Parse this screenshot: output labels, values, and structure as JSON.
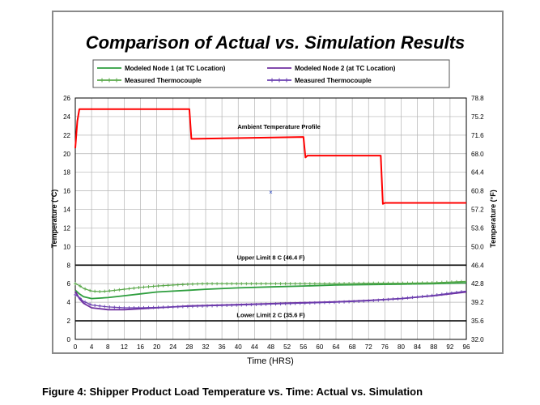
{
  "caption": "Figure 4:  Shipper Product Load Temperature vs. Time: Actual vs. Simulation",
  "chart_data": {
    "type": "line",
    "title": "Comparison of Actual vs. Simulation Results",
    "xlabel": "Time (HRS)",
    "ylabel": "Temperature (°C)",
    "ylabel_right": "Temperature (°F)",
    "xlim": [
      0,
      96
    ],
    "ylim": [
      0,
      26
    ],
    "x_ticks": [
      "0",
      "4",
      "8",
      "12",
      "16",
      "20",
      "24",
      "28",
      "32",
      "36",
      "40",
      "44",
      "48",
      "52",
      "56",
      "60",
      "64",
      "68",
      "72",
      "76",
      "80",
      "84",
      "88",
      "92",
      "96"
    ],
    "y_ticks": [
      "0",
      "2",
      "4",
      "6",
      "8",
      "10",
      "12",
      "14",
      "16",
      "18",
      "20",
      "22",
      "24",
      "26"
    ],
    "y_ticks_right": [
      "32.0",
      "35.6",
      "39.2",
      "42.8",
      "46.4",
      "50.0",
      "53.6",
      "57.2",
      "60.8",
      "64.4",
      "68.0",
      "71.6",
      "75.2",
      "78.8"
    ],
    "legend": [
      {
        "label": "Modeled Node 1 (at TC Location)",
        "color": "#2e9e3e",
        "marker": "none"
      },
      {
        "label": "Modeled Node 2 (at TC Location)",
        "color": "#7030a0",
        "marker": "none"
      },
      {
        "label": "Measured Thermocouple",
        "color": "#5aa84a",
        "marker": "plus"
      },
      {
        "label": "Measured Thermocouple",
        "color": "#6a3fb0",
        "marker": "plus"
      }
    ],
    "annotations": [
      {
        "text": "Ambient Temperature Profile",
        "x": 50,
        "y": 22.7
      },
      {
        "text": "Upper Limit 8  C (46.4  F)",
        "x": 48,
        "y": 8.6
      },
      {
        "text": "Lower Limit 2  C (35.6  F)",
        "x": 48,
        "y": 2.4
      }
    ],
    "limit_lines": [
      8,
      2
    ],
    "series": [
      {
        "name": "Ambient Temperature Profile",
        "color": "#ff0000",
        "x": [
          0,
          0.5,
          1,
          28,
          28.5,
          29,
          56,
          56.5,
          57,
          75,
          75.5,
          76,
          96
        ],
        "y": [
          20.6,
          23.5,
          24.8,
          24.8,
          21.6,
          21.6,
          21.8,
          19.6,
          19.8,
          19.8,
          14.6,
          14.7,
          14.7
        ]
      },
      {
        "name": "Modeled Node 1 (at TC Location)",
        "color": "#2e9e3e",
        "x": [
          0,
          1,
          2,
          4,
          8,
          12,
          16,
          20,
          24,
          28,
          32,
          40,
          48,
          56,
          64,
          72,
          80,
          88,
          96
        ],
        "y": [
          5.3,
          4.9,
          4.6,
          4.4,
          4.5,
          4.7,
          4.9,
          5.1,
          5.2,
          5.3,
          5.4,
          5.55,
          5.65,
          5.75,
          5.85,
          5.9,
          5.95,
          6.0,
          6.1
        ]
      },
      {
        "name": "Modeled Node 2 (at TC Location)",
        "color": "#7030a0",
        "x": [
          0,
          1,
          2,
          4,
          8,
          12,
          16,
          20,
          24,
          28,
          32,
          40,
          48,
          56,
          64,
          72,
          80,
          88,
          96
        ],
        "y": [
          5.2,
          4.4,
          3.9,
          3.4,
          3.2,
          3.2,
          3.3,
          3.4,
          3.5,
          3.6,
          3.65,
          3.75,
          3.85,
          3.95,
          4.05,
          4.2,
          4.4,
          4.7,
          5.1
        ]
      },
      {
        "name": "Measured Thermocouple (green)",
        "color": "#5aa84a",
        "x": [
          0,
          1,
          2,
          4,
          6,
          8,
          12,
          16,
          20,
          24,
          28,
          32,
          40,
          48,
          56,
          64,
          72,
          80,
          88,
          96
        ],
        "y": [
          6.0,
          5.8,
          5.5,
          5.2,
          5.15,
          5.2,
          5.4,
          5.6,
          5.75,
          5.85,
          5.95,
          6.0,
          6.0,
          6.0,
          6.0,
          6.0,
          6.05,
          6.05,
          6.1,
          6.25
        ]
      },
      {
        "name": "Measured Thermocouple (purple)",
        "color": "#6a3fb0",
        "x": [
          0,
          1,
          2,
          4,
          8,
          12,
          16,
          20,
          24,
          28,
          32,
          40,
          48,
          56,
          64,
          72,
          80,
          88,
          96
        ],
        "y": [
          4.8,
          4.5,
          4.1,
          3.7,
          3.5,
          3.4,
          3.4,
          3.45,
          3.5,
          3.55,
          3.6,
          3.7,
          3.8,
          3.9,
          4.0,
          4.15,
          4.4,
          4.75,
          5.2
        ]
      }
    ],
    "stray_marker": {
      "symbol": "×",
      "x": 48,
      "y": 15.9,
      "color": "#1f3fbf"
    }
  }
}
